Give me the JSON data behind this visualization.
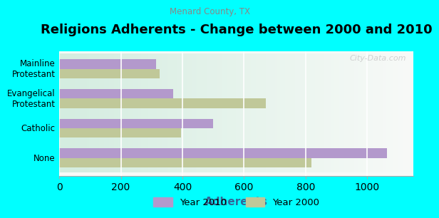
{
  "title": "Religions Adherents - Change between 2000 and 2010",
  "subtitle": "Menard County, TX",
  "categories": [
    "Mainline\nProtestant",
    "Evangelical\nProtestant",
    "Catholic",
    "None"
  ],
  "values_2010": [
    315,
    370,
    500,
    1065
  ],
  "values_2000": [
    325,
    670,
    395,
    820
  ],
  "color_2010": "#b399cc",
  "color_2000": "#c0c899",
  "xlabel": "Adherents",
  "legend_2010": "Year 2010",
  "legend_2000": "Year 2000",
  "xlim": [
    0,
    1150
  ],
  "background_outer": "#00ffff",
  "background_inner_left": "#d4ede0",
  "background_inner_right": "#f8faf8",
  "watermark": "City-Data.com",
  "title_fontsize": 13,
  "subtitle_fontsize": 8.5,
  "xlabel_fontsize": 11,
  "ytick_fontsize": 8.5,
  "legend_fontsize": 9.5
}
